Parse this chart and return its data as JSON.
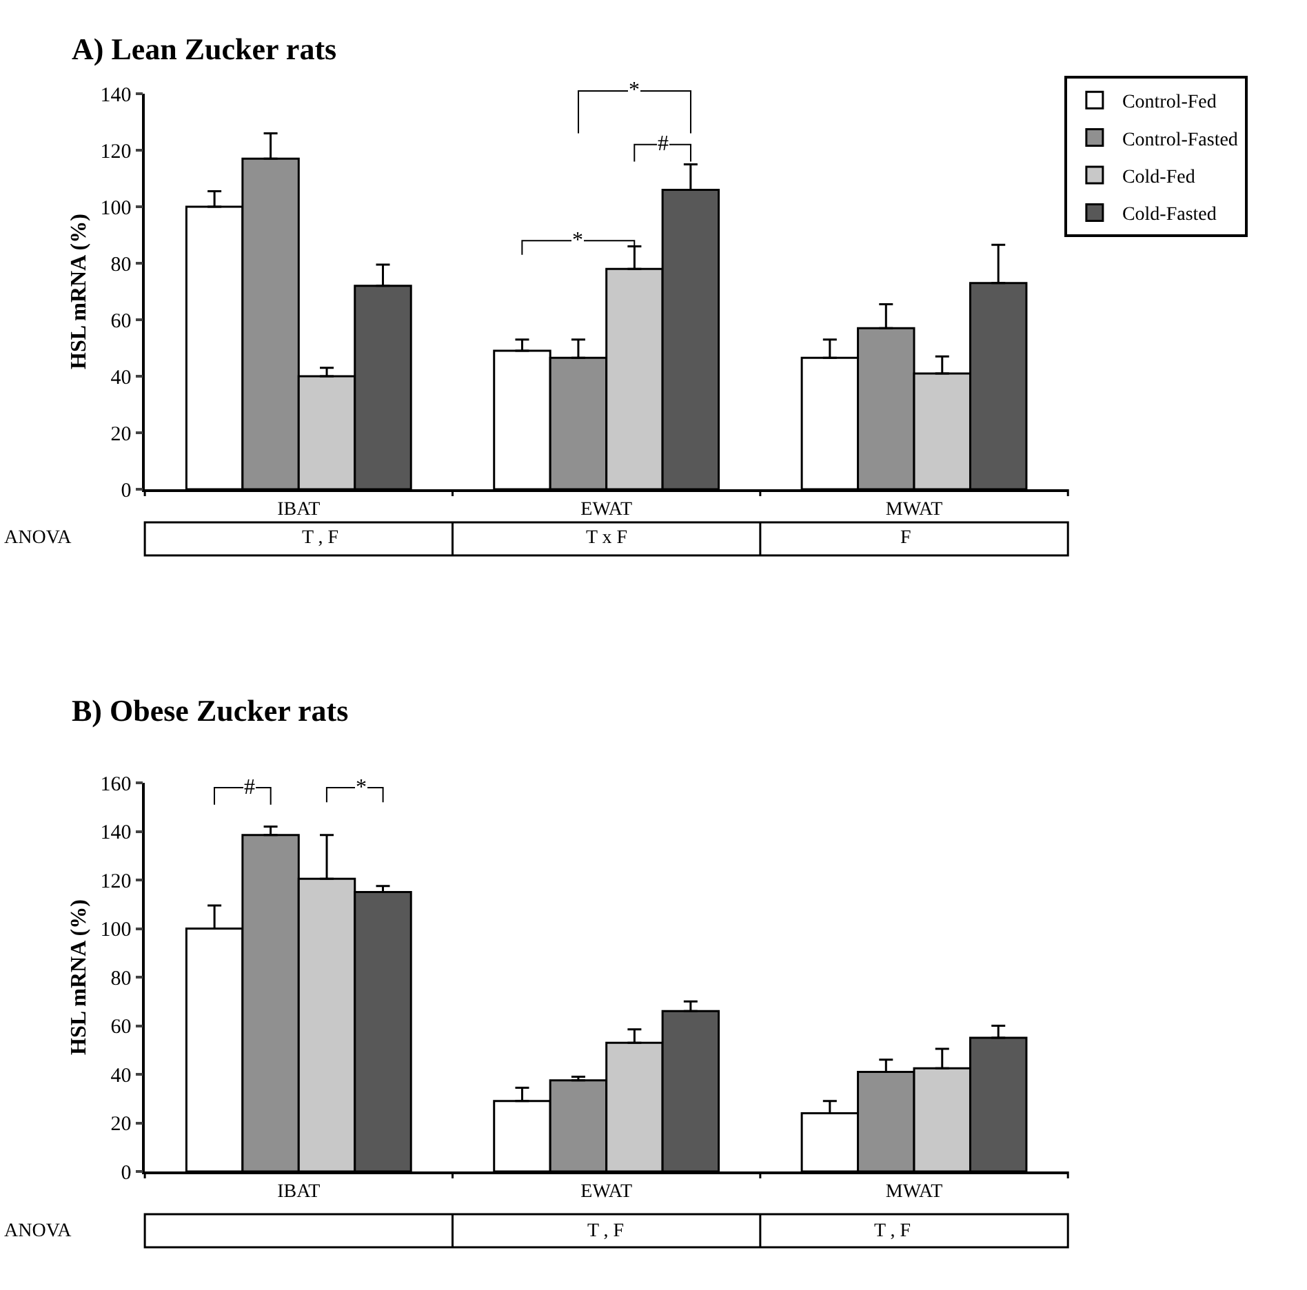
{
  "chart_data": [
    {
      "type": "bar",
      "title": "A) Lean Zucker rats",
      "ylabel": "HSL mRNA (%)",
      "categories": [
        "IBAT",
        "EWAT",
        "MWAT"
      ],
      "series": [
        {
          "name": "Control-Fed",
          "color": "#ffffff",
          "values": [
            100,
            49,
            46.5
          ],
          "errors": [
            [
              100,
              105.5
            ],
            [
              49,
              53
            ],
            [
              46.5,
              53
            ]
          ]
        },
        {
          "name": "Control-Fasted",
          "color": "#909090",
          "values": [
            117,
            46.5,
            57
          ],
          "errors": [
            [
              117,
              126
            ],
            [
              46.5,
              53
            ],
            [
              57,
              65.5
            ]
          ]
        },
        {
          "name": "Cold-Fed",
          "color": "#c8c8c8",
          "values": [
            40,
            78,
            41
          ],
          "errors": [
            [
              40,
              43
            ],
            [
              78,
              86
            ],
            [
              41,
              47
            ]
          ]
        },
        {
          "name": "Cold-Fasted",
          "color": "#585858",
          "values": [
            72,
            106,
            73
          ],
          "errors": [
            [
              72,
              79.5
            ],
            [
              106,
              115
            ],
            [
              73,
              86.5
            ]
          ]
        }
      ],
      "ylim": [
        0,
        140
      ],
      "yticks": [
        0,
        20,
        40,
        60,
        80,
        100,
        120,
        140
      ],
      "legend": "top right",
      "annotations": [
        "*",
        "*",
        "#",
        "ANOVA",
        "T , F",
        "T x F",
        "F"
      ]
    },
    {
      "type": "bar",
      "title": "B) Obese Zucker rats",
      "ylabel": "HSL mRNA (%)",
      "categories": [
        "IBAT",
        "EWAT",
        "MWAT"
      ],
      "series": [
        {
          "color": "#ffffff",
          "values": [
            100,
            29,
            24
          ],
          "errors": [
            [
              100,
              109.5
            ],
            [
              29,
              34.5
            ],
            [
              24,
              29
            ]
          ]
        },
        {
          "color": "#909090",
          "values": [
            138.5,
            37.5,
            41
          ],
          "errors": [
            [
              138.5,
              142
            ],
            [
              37.5,
              39
            ],
            [
              41,
              46
            ]
          ]
        },
        {
          "color": "#c8c8c8",
          "values": [
            120.5,
            53,
            42.5
          ],
          "errors": [
            [
              120.5,
              138.5
            ],
            [
              53,
              58.5
            ],
            [
              42.5,
              50.5
            ]
          ]
        },
        {
          "color": "#585858",
          "values": [
            115,
            66,
            55
          ],
          "errors": [
            [
              115,
              117.5
            ],
            [
              66,
              70
            ],
            [
              55,
              60
            ]
          ]
        }
      ],
      "ylim": [
        0,
        160
      ],
      "yticks": [
        0,
        20,
        40,
        60,
        80,
        100,
        120,
        140,
        160
      ],
      "annotations": [
        "#",
        "*",
        "ANOVA",
        "T , F",
        "T , F"
      ]
    }
  ]
}
